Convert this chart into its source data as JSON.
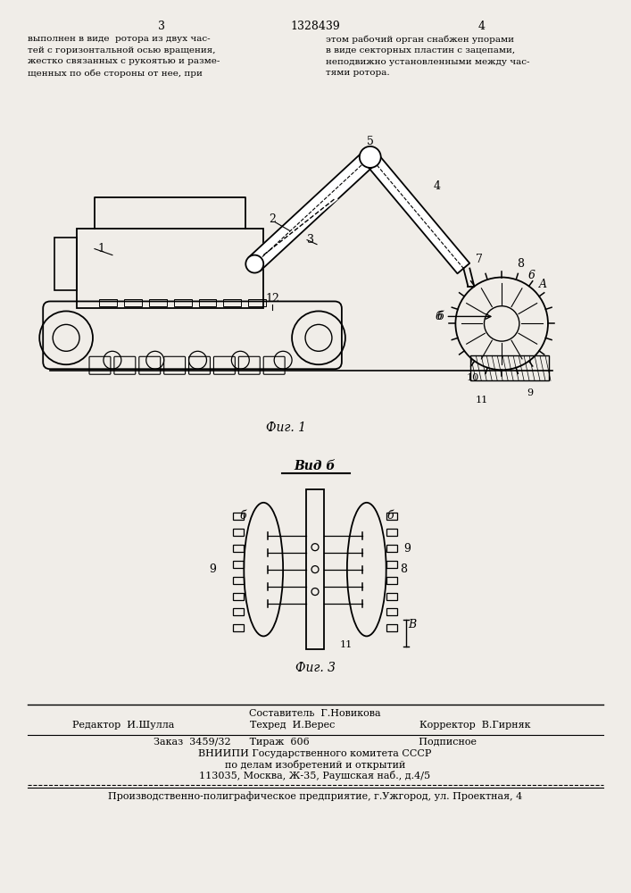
{
  "page_width": 7.07,
  "page_height": 10.0,
  "bg_color": "#f0ede8",
  "patent_number": "1328439",
  "page_numbers": [
    "3",
    "4"
  ],
  "header_text_left": "выполнен в виде  ротора из двух час-\nтей с горизонтальной осью вращения,\nжестко связанных с рукоятью и разме-\nщенных по обе стороны от нее, при",
  "header_text_right": "этом рабочий орган снабжен упорами\nв виде секторных пластин с зацепами,\nнеподвижно установленными между час-\nтями ротора.",
  "fig1_caption": "Фиг. 1",
  "fig3_caption": "Фиг. 3",
  "vidb_label": "Вид б",
  "footer_line1": "Составитель  Г.Новикова",
  "footer_line2_left": "Редактор  И.Шулла",
  "footer_line2_mid": "Техред  И.Верес",
  "footer_line2_right": "Корректор  В.Гирняк",
  "footer_line3": "Заказ  3459/32      Тираж  606                                   Подписное",
  "footer_line4": "ВНИИПИ Государственного комитета СССР",
  "footer_line5": "по делам изобретений и открытий",
  "footer_line6": "113035, Москва, Ж-35, Раушская наб., д.4/5",
  "footer_line7": "Производственно-полиграфическое предприятие, г.Ужгород, ул. Проектная, 4"
}
